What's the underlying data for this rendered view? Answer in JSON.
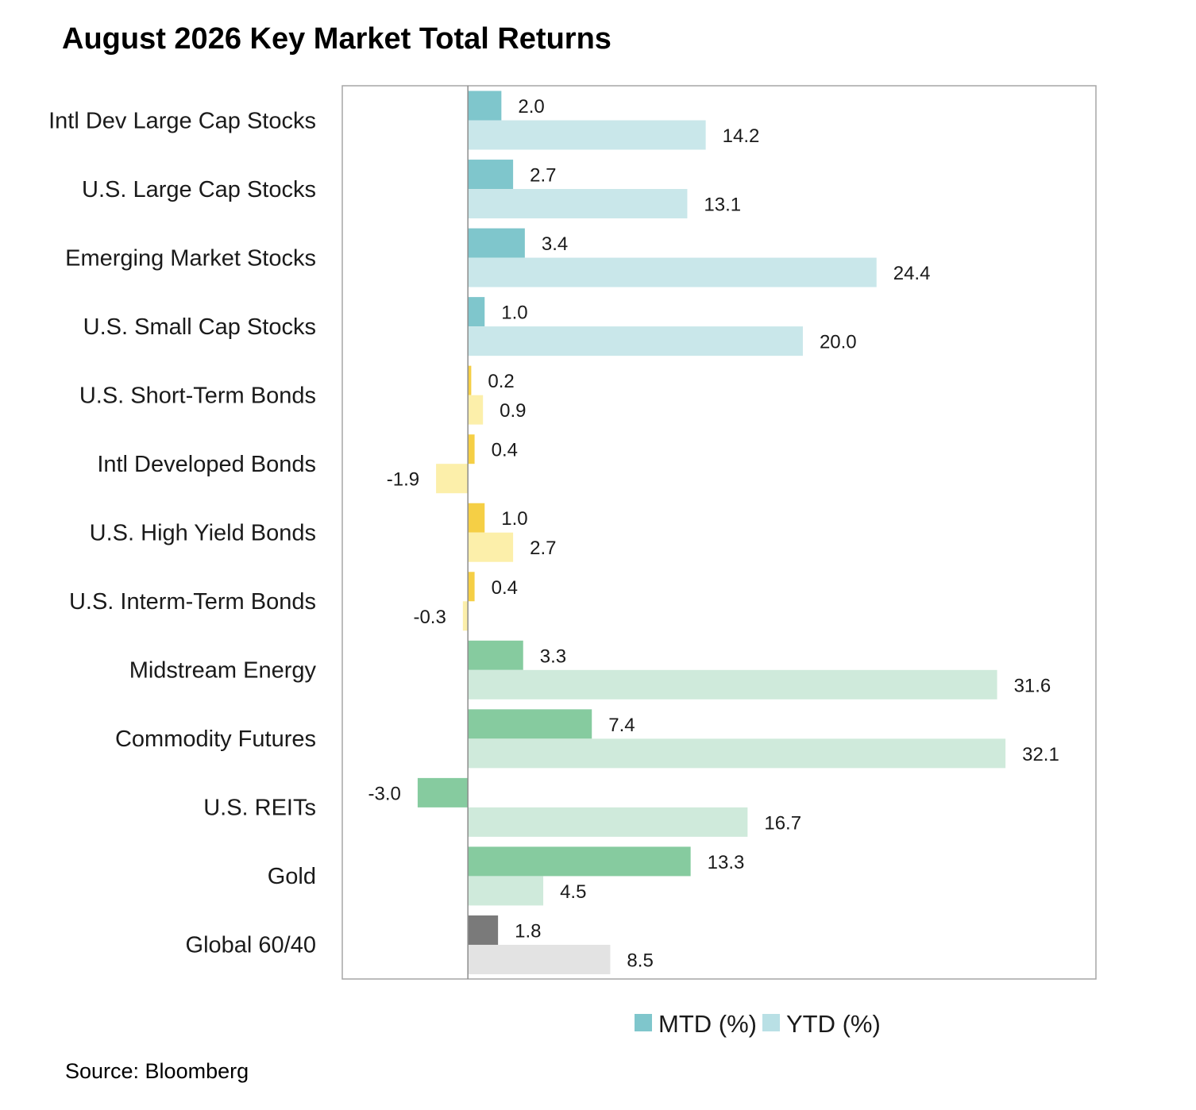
{
  "chart_data": {
    "type": "bar",
    "orientation": "horizontal",
    "title": "August 2026 Key Market Total Returns",
    "source": "Source: Bloomberg",
    "xlim": [
      -7.5,
      37.5
    ],
    "legend_position": "bottom",
    "grid": false,
    "categories": [
      "Intl Dev Large Cap Stocks",
      "U.S. Large Cap Stocks",
      "Emerging Market Stocks",
      "U.S. Small Cap Stocks",
      "U.S. Short-Term Bonds",
      "Intl Developed Bonds",
      "U.S. High Yield Bonds",
      "U.S. Interm-Term Bonds",
      "Midstream Energy",
      "Commodity Futures",
      "U.S. REITs",
      "Gold",
      "Global 60/40"
    ],
    "series": [
      {
        "name": "MTD (%)",
        "values": [
          2.0,
          2.7,
          3.4,
          1.0,
          0.2,
          0.4,
          1.0,
          0.4,
          3.3,
          7.4,
          -3.0,
          13.3,
          1.8
        ],
        "labels": [
          "2.0",
          "2.7",
          "3.4",
          "1.0",
          "0.2",
          "0.4",
          "1.0",
          "0.4",
          "3.3",
          "7.4",
          "-3.0",
          "13.3",
          "1.8"
        ]
      },
      {
        "name": "YTD (%)",
        "values": [
          14.2,
          13.1,
          24.4,
          20.0,
          0.9,
          -1.9,
          2.7,
          -0.3,
          31.6,
          32.1,
          16.7,
          4.5,
          8.5
        ],
        "labels": [
          "14.2",
          "13.1",
          "24.4",
          "20.0",
          "0.9",
          "-1.9",
          "2.7",
          "-0.3",
          "31.6",
          "32.1",
          "16.7",
          "4.5",
          "8.5"
        ]
      }
    ],
    "group_colors": [
      {
        "mtd": "#7fc6cc",
        "ytd": "#c9e7ea"
      },
      {
        "mtd": "#7fc6cc",
        "ytd": "#c9e7ea"
      },
      {
        "mtd": "#7fc6cc",
        "ytd": "#c9e7ea"
      },
      {
        "mtd": "#7fc6cc",
        "ytd": "#c9e7ea"
      },
      {
        "mtd": "#f5cf45",
        "ytd": "#fcefaa"
      },
      {
        "mtd": "#f5cf45",
        "ytd": "#fcefaa"
      },
      {
        "mtd": "#f5cf45",
        "ytd": "#fcefaa"
      },
      {
        "mtd": "#f5cf45",
        "ytd": "#fcefaa"
      },
      {
        "mtd": "#86cb9f",
        "ytd": "#cfeadb"
      },
      {
        "mtd": "#86cb9f",
        "ytd": "#cfeadb"
      },
      {
        "mtd": "#86cb9f",
        "ytd": "#cfeadb"
      },
      {
        "mtd": "#86cb9f",
        "ytd": "#cfeadb"
      },
      {
        "mtd": "#7a7a7a",
        "ytd": "#e3e3e3"
      }
    ],
    "legend_colors": {
      "mtd": "#7fc6cc",
      "ytd": "#b9e0e5"
    }
  }
}
